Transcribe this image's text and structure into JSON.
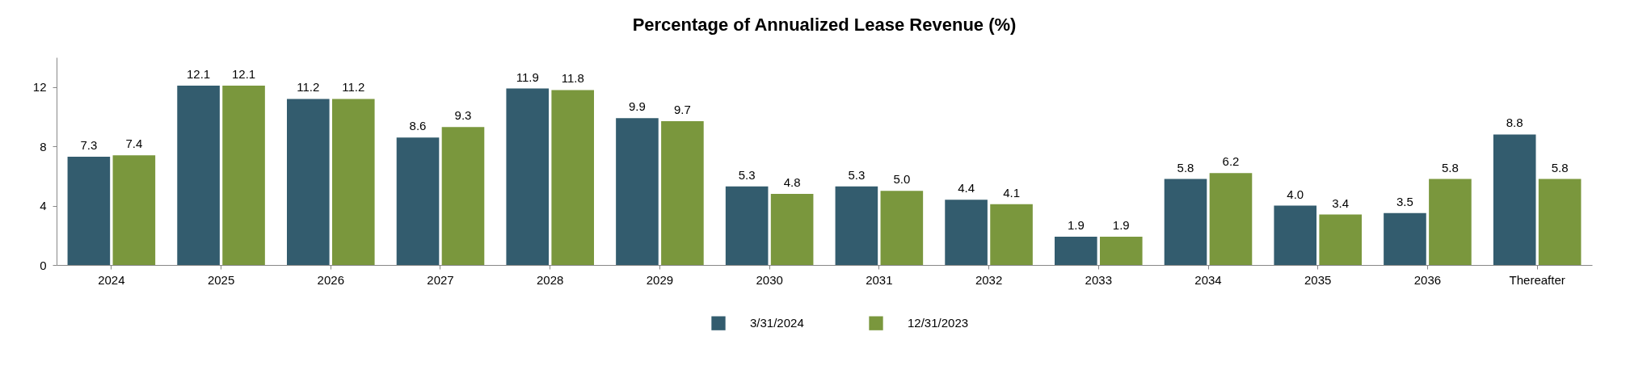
{
  "chart_data": {
    "type": "bar",
    "title": "Percentage of Annualized Lease Revenue (%)",
    "categories": [
      "2024",
      "2025",
      "2026",
      "2027",
      "2028",
      "2029",
      "2030",
      "2031",
      "2032",
      "2033",
      "2034",
      "2035",
      "2036",
      "Thereafter"
    ],
    "series": [
      {
        "name": "3/31/2024",
        "color": "#335c6e",
        "values": [
          7.3,
          12.1,
          11.2,
          8.6,
          11.9,
          9.9,
          5.3,
          5.3,
          4.4,
          1.9,
          5.8,
          4.0,
          3.5,
          8.8
        ],
        "value_labels": [
          "7.3",
          "12.1",
          "11.2",
          "8.6",
          "11.9",
          "9.9",
          "5.3",
          "5.3",
          "4.4",
          "1.9",
          "5.8",
          "4.0",
          "3.5",
          "8.8"
        ]
      },
      {
        "name": "12/31/2023",
        "color": "#7a973d",
        "values": [
          7.4,
          12.1,
          11.2,
          9.3,
          11.8,
          9.7,
          4.8,
          5.0,
          4.1,
          1.9,
          6.2,
          3.4,
          5.8,
          5.8
        ],
        "value_labels": [
          "7.4",
          "12.1",
          "11.2",
          "9.3",
          "11.8",
          "9.7",
          "4.8",
          "5.0",
          "4.1",
          "1.9",
          "6.2",
          "3.4",
          "5.8",
          "5.8"
        ]
      }
    ],
    "ylim": [
      0,
      14
    ],
    "yticks": [
      0,
      4,
      8,
      12
    ],
    "grid": false,
    "legend": "bottom"
  }
}
